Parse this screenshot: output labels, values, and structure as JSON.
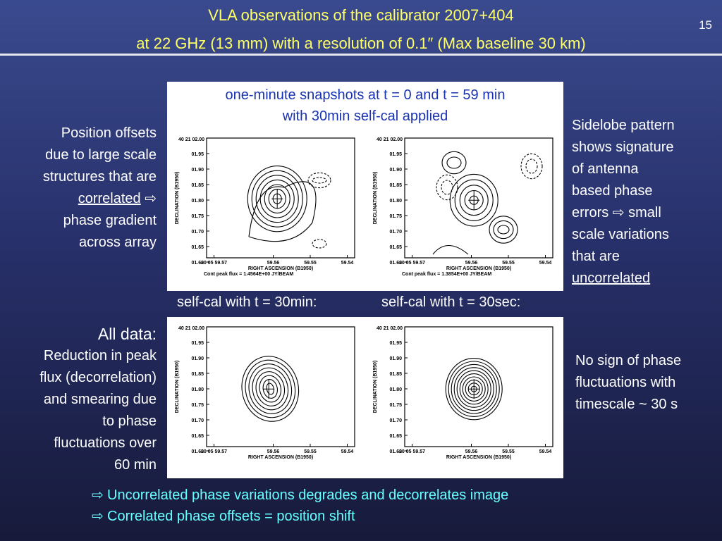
{
  "title": {
    "line1": "VLA observations of the calibrator 2007+404",
    "line2": "at 22 GHz (13 mm) with a resolution of 0.1″ (Max baseline 30 km)"
  },
  "page_number": "15",
  "panel_top_caption": {
    "line1": "one-minute snapshots at t = 0 and t = 59 min",
    "line2": "with 30min self-cal applied"
  },
  "mid_labels": {
    "left": "self-cal with t = 30min:",
    "right": "self-cal with t = 30sec:"
  },
  "plot_axes": {
    "y_top_label": "40 21 02.00",
    "y_ticks": [
      "01.95",
      "01.90",
      "01.85",
      "01.80",
      "01.75",
      "01.70",
      "01.65",
      "01.60"
    ],
    "x_ticks": [
      "20 05 59.57",
      "59.56",
      "59.55",
      "59.54"
    ],
    "xlabel": "RIGHT ASCENSION (B1950)",
    "ylabel": "DECLINATION (B1950)"
  },
  "plots": [
    {
      "id": "tl",
      "peak_note": "Cont peak flux = 1.4564E+00 JY/BEAM"
    },
    {
      "id": "tr",
      "peak_note": "Cont peak flux = 1.3854E+00 JY/BEAM"
    },
    {
      "id": "bl",
      "peak_note": ""
    },
    {
      "id": "br",
      "peak_note": ""
    }
  ],
  "left_notes": {
    "top": {
      "line1": "Position offsets",
      "line2": "due to large scale",
      "line3": "structures that are",
      "line4_u": "correlated",
      "line4_arrow": "⇨",
      "line5": "phase gradient",
      "line6": "across array"
    },
    "bottom": {
      "heading": "All data:",
      "line1": "Reduction in peak",
      "line2": "flux (decorrelation)",
      "line3": "and smearing due",
      "line4": "to phase",
      "line5": "fluctuations over",
      "line6": "60 min"
    }
  },
  "right_notes": {
    "top": {
      "line1": "Sidelobe pattern",
      "line2": "shows signature",
      "line3": "of antenna",
      "line4": "based phase",
      "line5_a": "errors",
      "line5_arrow": "⇨",
      "line5_b": "small",
      "line6": "scale variations",
      "line7": "that are",
      "line8_u": "uncorrelated"
    },
    "bottom": {
      "line1": "No sign of phase",
      "line2": "fluctuations with",
      "line3": "timescale ~ 30 s"
    }
  },
  "bullets": [
    {
      "arrow": "⇨",
      "text": "Uncorrelated phase variations degrades and decorrelates image"
    },
    {
      "arrow": "⇨",
      "text": "Correlated phase offsets = position shift"
    }
  ],
  "colors": {
    "title": "#ffff66",
    "caption": "#1a33b0",
    "bullets": "#66ffff",
    "background_top": "#3a4a8e",
    "background_bottom": "#171a3a"
  }
}
